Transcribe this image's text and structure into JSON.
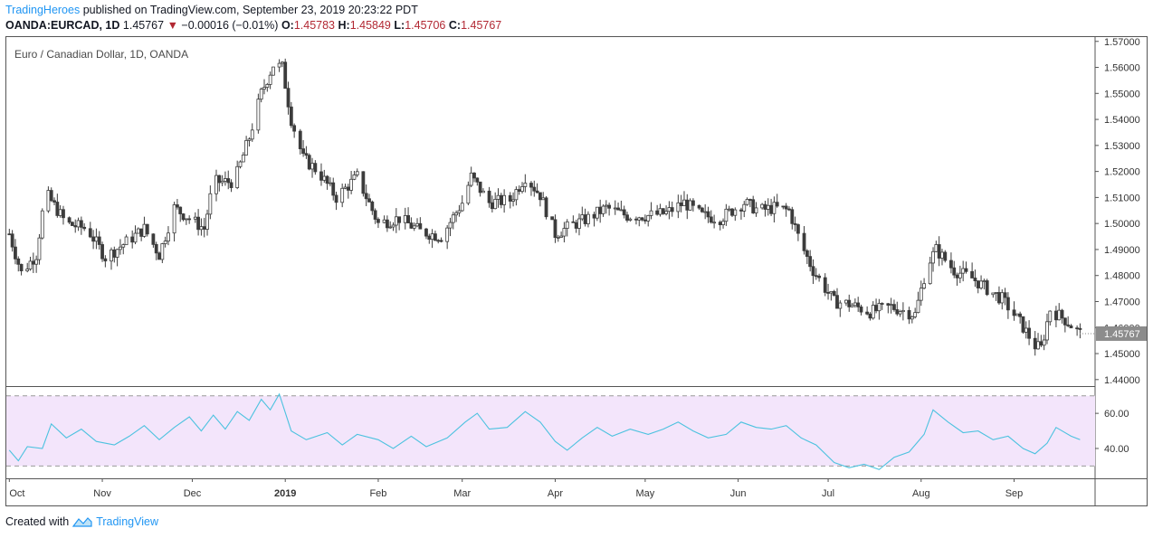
{
  "header": {
    "author": "TradingHeroes",
    "published": " published on TradingView.com, September 23, 2019 20:23:22 PDT",
    "symbol": "OANDA:EURCAD, 1D",
    "last": "1.45767",
    "change_arrow": "▼",
    "change": "−0.00016 (−0.01%)",
    "o_label": "O:",
    "o": "1.45783",
    "h_label": "H:",
    "h": "1.45849",
    "l_label": "L:",
    "l": "1.45706",
    "c_label": "C:",
    "c": "1.45767"
  },
  "legend": "Euro / Canadian Dollar, 1D, OANDA",
  "footer": {
    "created_with": "Created with",
    "brand": "TradingView"
  },
  "colors": {
    "candle": "#3c3c3c",
    "price_badge": "#8c8c8c",
    "rsi_line": "#4cc2df",
    "rsi_band": "#f3e5fb",
    "author": "#2196f3",
    "down": "#b22833"
  },
  "chart_data": [
    {
      "type": "candlestick",
      "title": "Euro / Canadian Dollar, 1D, OANDA",
      "yticks": [
        "1.44000",
        "1.45000",
        "1.46000",
        "1.47000",
        "1.48000",
        "1.49000",
        "1.50000",
        "1.51000",
        "1.52000",
        "1.53000",
        "1.54000",
        "1.55000",
        "1.56000",
        "1.57000"
      ],
      "ylim": [
        1.4375,
        1.572
      ],
      "xticks": [
        {
          "label": "Oct",
          "date": "2018-10-01"
        },
        {
          "label": "Nov",
          "date": "2018-11-01"
        },
        {
          "label": "Dec",
          "date": "2018-12-01"
        },
        {
          "label": "2019",
          "date": "2019-01-01",
          "bold": true
        },
        {
          "label": "Feb",
          "date": "2019-02-01"
        },
        {
          "label": "Mar",
          "date": "2019-03-01"
        },
        {
          "label": "Apr",
          "date": "2019-04-01"
        },
        {
          "label": "May",
          "date": "2019-05-01"
        },
        {
          "label": "Jun",
          "date": "2019-06-01"
        },
        {
          "label": "Jul",
          "date": "2019-07-01"
        },
        {
          "label": "Aug",
          "date": "2019-08-01"
        },
        {
          "label": "Sep",
          "date": "2019-09-01"
        }
      ],
      "xlim": [
        "2018-09-30",
        "2019-09-28"
      ],
      "last_price": "1.45767",
      "close_series": [
        {
          "date": "2018-10-01",
          "close": 1.496
        },
        {
          "date": "2018-10-05",
          "close": 1.481
        },
        {
          "date": "2018-10-10",
          "close": 1.488
        },
        {
          "date": "2018-10-13",
          "close": 1.512
        },
        {
          "date": "2018-10-20",
          "close": 1.5
        },
        {
          "date": "2018-10-27",
          "close": 1.498
        },
        {
          "date": "2018-11-02",
          "close": 1.487
        },
        {
          "date": "2018-11-08",
          "close": 1.492
        },
        {
          "date": "2018-11-15",
          "close": 1.498
        },
        {
          "date": "2018-11-20",
          "close": 1.488
        },
        {
          "date": "2018-11-25",
          "close": 1.506
        },
        {
          "date": "2018-11-30",
          "close": 1.502
        },
        {
          "date": "2018-12-05",
          "close": 1.498
        },
        {
          "date": "2018-12-08",
          "close": 1.516
        },
        {
          "date": "2018-12-15",
          "close": 1.516
        },
        {
          "date": "2018-12-20",
          "close": 1.533
        },
        {
          "date": "2018-12-24",
          "close": 1.55
        },
        {
          "date": "2018-12-28",
          "close": 1.561
        },
        {
          "date": "2018-12-31",
          "close": 1.56
        },
        {
          "date": "2019-01-03",
          "close": 1.54
        },
        {
          "date": "2019-01-07",
          "close": 1.525
        },
        {
          "date": "2019-01-12",
          "close": 1.52
        },
        {
          "date": "2019-01-18",
          "close": 1.51
        },
        {
          "date": "2019-01-25",
          "close": 1.518
        },
        {
          "date": "2019-02-01",
          "close": 1.5
        },
        {
          "date": "2019-02-08",
          "close": 1.502
        },
        {
          "date": "2019-02-15",
          "close": 1.497
        },
        {
          "date": "2019-02-22",
          "close": 1.495
        },
        {
          "date": "2019-03-01",
          "close": 1.508
        },
        {
          "date": "2019-03-04",
          "close": 1.518
        },
        {
          "date": "2019-03-10",
          "close": 1.508
        },
        {
          "date": "2019-03-17",
          "close": 1.509
        },
        {
          "date": "2019-03-22",
          "close": 1.518
        },
        {
          "date": "2019-03-27",
          "close": 1.511
        },
        {
          "date": "2019-04-01",
          "close": 1.496
        },
        {
          "date": "2019-04-06",
          "close": 1.499
        },
        {
          "date": "2019-04-12",
          "close": 1.502
        },
        {
          "date": "2019-04-18",
          "close": 1.506
        },
        {
          "date": "2019-04-25",
          "close": 1.503
        },
        {
          "date": "2019-05-02",
          "close": 1.503
        },
        {
          "date": "2019-05-08",
          "close": 1.504
        },
        {
          "date": "2019-05-14",
          "close": 1.508
        },
        {
          "date": "2019-05-20",
          "close": 1.503
        },
        {
          "date": "2019-05-26",
          "close": 1.502
        },
        {
          "date": "2019-06-03",
          "close": 1.508
        },
        {
          "date": "2019-06-08",
          "close": 1.505
        },
        {
          "date": "2019-06-13",
          "close": 1.506
        },
        {
          "date": "2019-06-18",
          "close": 1.505
        },
        {
          "date": "2019-06-22",
          "close": 1.492
        },
        {
          "date": "2019-06-26",
          "close": 1.482
        },
        {
          "date": "2019-07-03",
          "close": 1.47
        },
        {
          "date": "2019-07-08",
          "close": 1.469
        },
        {
          "date": "2019-07-15",
          "close": 1.466
        },
        {
          "date": "2019-07-22",
          "close": 1.468
        },
        {
          "date": "2019-07-30",
          "close": 1.465
        },
        {
          "date": "2019-08-03",
          "close": 1.484
        },
        {
          "date": "2019-08-06",
          "close": 1.49
        },
        {
          "date": "2019-08-12",
          "close": 1.482
        },
        {
          "date": "2019-08-18",
          "close": 1.479
        },
        {
          "date": "2019-08-24",
          "close": 1.474
        },
        {
          "date": "2019-08-28",
          "close": 1.471
        },
        {
          "date": "2019-09-03",
          "close": 1.462
        },
        {
          "date": "2019-09-08",
          "close": 1.453
        },
        {
          "date": "2019-09-10",
          "close": 1.452
        },
        {
          "date": "2019-09-13",
          "close": 1.467
        },
        {
          "date": "2019-09-18",
          "close": 1.463
        },
        {
          "date": "2019-09-23",
          "close": 1.4577
        }
      ]
    },
    {
      "type": "line",
      "title": "",
      "yticks": [
        "40.00",
        "60.00"
      ],
      "ylim": [
        23,
        75
      ],
      "bands": [
        30,
        70
      ],
      "band_color": "#f3e5fb",
      "series": [
        {
          "values": [
            {
              "date": "2018-10-01",
              "v": 39
            },
            {
              "date": "2018-10-04",
              "v": 33
            },
            {
              "date": "2018-10-07",
              "v": 41
            },
            {
              "date": "2018-10-12",
              "v": 40
            },
            {
              "date": "2018-10-15",
              "v": 54
            },
            {
              "date": "2018-10-20",
              "v": 46
            },
            {
              "date": "2018-10-25",
              "v": 51
            },
            {
              "date": "2018-10-30",
              "v": 44
            },
            {
              "date": "2018-11-05",
              "v": 42
            },
            {
              "date": "2018-11-10",
              "v": 47
            },
            {
              "date": "2018-11-15",
              "v": 53
            },
            {
              "date": "2018-11-20",
              "v": 45
            },
            {
              "date": "2018-11-25",
              "v": 52
            },
            {
              "date": "2018-11-30",
              "v": 58
            },
            {
              "date": "2018-12-04",
              "v": 50
            },
            {
              "date": "2018-12-08",
              "v": 59
            },
            {
              "date": "2018-12-12",
              "v": 51
            },
            {
              "date": "2018-12-16",
              "v": 61
            },
            {
              "date": "2018-12-20",
              "v": 56
            },
            {
              "date": "2018-12-24",
              "v": 68
            },
            {
              "date": "2018-12-27",
              "v": 62
            },
            {
              "date": "2018-12-30",
              "v": 71
            },
            {
              "date": "2019-01-03",
              "v": 50
            },
            {
              "date": "2019-01-08",
              "v": 45
            },
            {
              "date": "2019-01-15",
              "v": 49
            },
            {
              "date": "2019-01-20",
              "v": 42
            },
            {
              "date": "2019-01-25",
              "v": 48
            },
            {
              "date": "2019-02-01",
              "v": 45
            },
            {
              "date": "2019-02-06",
              "v": 40
            },
            {
              "date": "2019-02-12",
              "v": 47
            },
            {
              "date": "2019-02-17",
              "v": 41
            },
            {
              "date": "2019-02-24",
              "v": 46
            },
            {
              "date": "2019-03-02",
              "v": 55
            },
            {
              "date": "2019-03-06",
              "v": 60
            },
            {
              "date": "2019-03-10",
              "v": 51
            },
            {
              "date": "2019-03-16",
              "v": 52
            },
            {
              "date": "2019-03-22",
              "v": 61
            },
            {
              "date": "2019-03-27",
              "v": 55
            },
            {
              "date": "2019-04-01",
              "v": 44
            },
            {
              "date": "2019-04-05",
              "v": 39
            },
            {
              "date": "2019-04-10",
              "v": 46
            },
            {
              "date": "2019-04-15",
              "v": 52
            },
            {
              "date": "2019-04-20",
              "v": 47
            },
            {
              "date": "2019-04-26",
              "v": 51
            },
            {
              "date": "2019-05-02",
              "v": 48
            },
            {
              "date": "2019-05-07",
              "v": 51
            },
            {
              "date": "2019-05-12",
              "v": 55
            },
            {
              "date": "2019-05-17",
              "v": 50
            },
            {
              "date": "2019-05-22",
              "v": 46
            },
            {
              "date": "2019-05-28",
              "v": 48
            },
            {
              "date": "2019-06-02",
              "v": 55
            },
            {
              "date": "2019-06-07",
              "v": 52
            },
            {
              "date": "2019-06-12",
              "v": 51
            },
            {
              "date": "2019-06-17",
              "v": 53
            },
            {
              "date": "2019-06-22",
              "v": 46
            },
            {
              "date": "2019-06-27",
              "v": 42
            },
            {
              "date": "2019-07-03",
              "v": 32
            },
            {
              "date": "2019-07-08",
              "v": 29
            },
            {
              "date": "2019-07-13",
              "v": 31
            },
            {
              "date": "2019-07-18",
              "v": 28
            },
            {
              "date": "2019-07-23",
              "v": 35
            },
            {
              "date": "2019-07-28",
              "v": 38
            },
            {
              "date": "2019-08-02",
              "v": 48
            },
            {
              "date": "2019-08-05",
              "v": 62
            },
            {
              "date": "2019-08-10",
              "v": 55
            },
            {
              "date": "2019-08-15",
              "v": 49
            },
            {
              "date": "2019-08-20",
              "v": 50
            },
            {
              "date": "2019-08-25",
              "v": 45
            },
            {
              "date": "2019-08-30",
              "v": 47
            },
            {
              "date": "2019-09-04",
              "v": 40
            },
            {
              "date": "2019-09-08",
              "v": 37
            },
            {
              "date": "2019-09-12",
              "v": 43
            },
            {
              "date": "2019-09-15",
              "v": 52
            },
            {
              "date": "2019-09-20",
              "v": 47
            },
            {
              "date": "2019-09-23",
              "v": 45
            }
          ]
        }
      ]
    }
  ]
}
